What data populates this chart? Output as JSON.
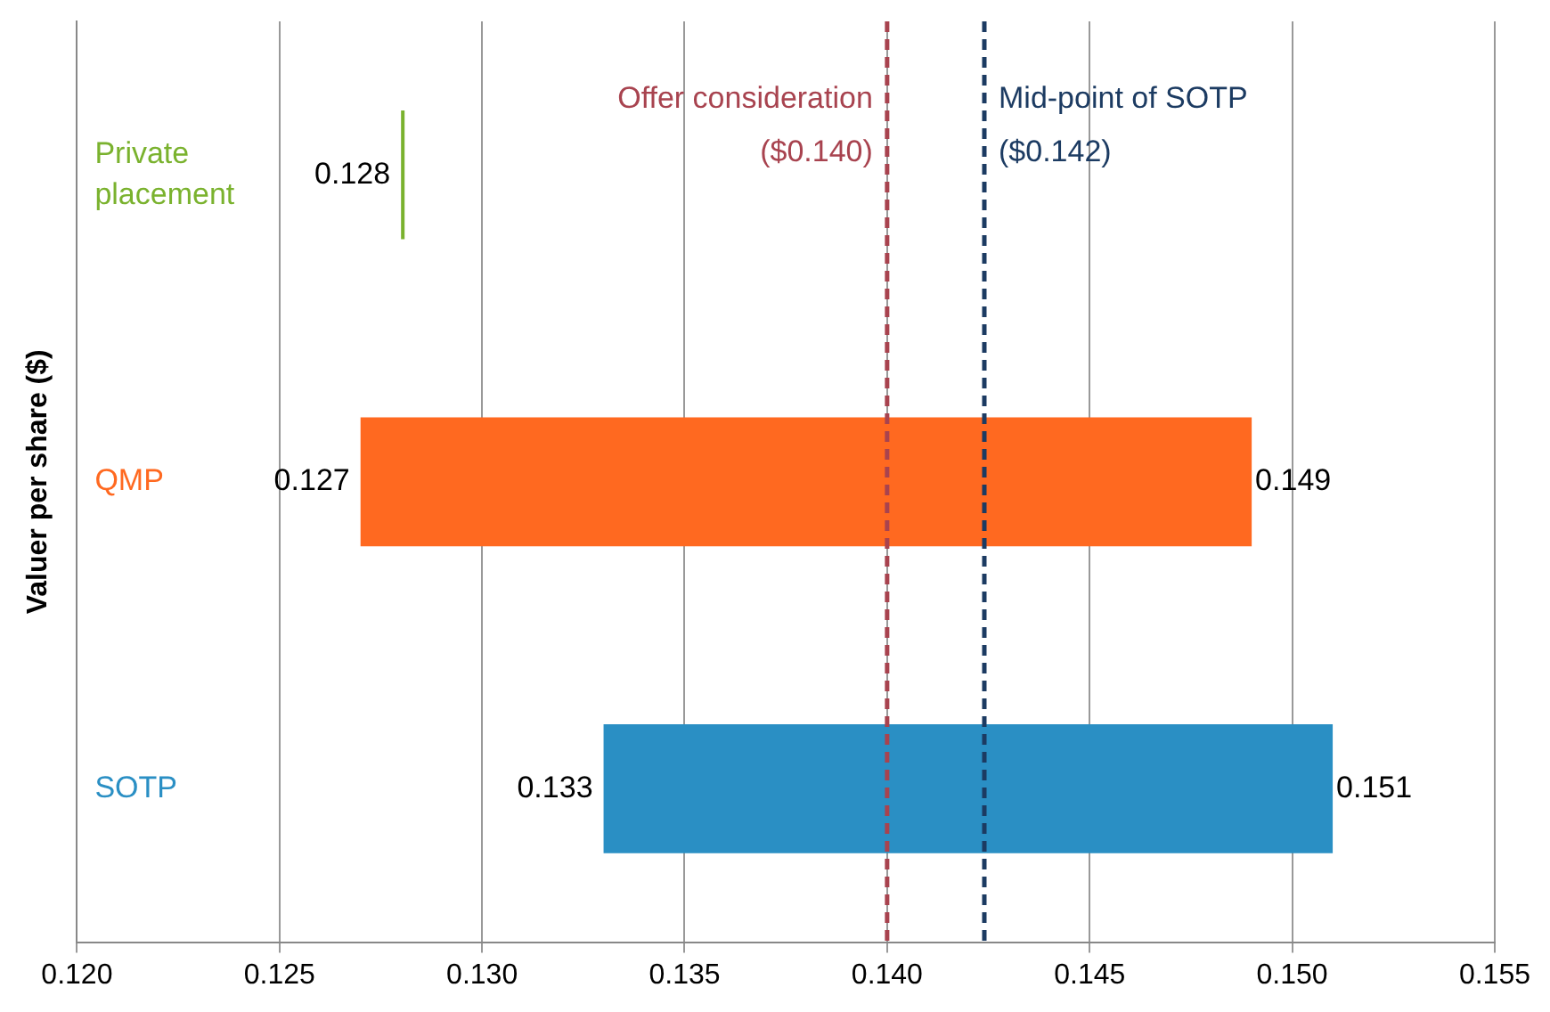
{
  "chart_data": {
    "type": "bar",
    "orientation": "horizontal",
    "ylabel": "Valuer per share ($)",
    "categories": [
      "Private placement",
      "QMP",
      "SOTP"
    ],
    "base": [
      0.128,
      0.127,
      0.133
    ],
    "values": [
      0,
      0.022,
      0.018
    ],
    "colors": [
      "#7ab22e",
      "#ff6920",
      "#2a8fc4"
    ],
    "xlim": [
      0.12,
      0.155
    ],
    "xticks": [
      {
        "value": 0.12,
        "label": "0.120"
      },
      {
        "value": 0.125,
        "label": "0.125"
      },
      {
        "value": 0.13,
        "label": "0.130"
      },
      {
        "value": 0.135,
        "label": "0.135"
      },
      {
        "value": 0.14,
        "label": "0.140"
      },
      {
        "value": 0.145,
        "label": "0.145"
      },
      {
        "value": 0.15,
        "label": "0.150"
      },
      {
        "value": 0.155,
        "label": "0.155"
      }
    ],
    "grid": "x",
    "legend": false,
    "ref_lines": [
      {
        "axis": "x",
        "value": 0.14,
        "label": "Offer consideration ($0.140)",
        "color": "#a8434f",
        "line_style": "dashed"
      },
      {
        "axis": "x",
        "value": 0.1424,
        "label": "Mid-point of SOTP ($0.142)",
        "color": "#1c3b62",
        "line_style": "dashed"
      }
    ],
    "annotations": [
      {
        "text": "0.128",
        "x": 0.128,
        "y": "Private placement"
      },
      {
        "text": "0.127",
        "x": 0.127,
        "y": "QMP"
      },
      {
        "text": "0.149",
        "x": 0.149,
        "y": "QMP"
      },
      {
        "text": "0.133",
        "x": 0.133,
        "y": "SOTP"
      },
      {
        "text": "0.151",
        "x": 0.151,
        "y": "SOTP"
      }
    ]
  }
}
